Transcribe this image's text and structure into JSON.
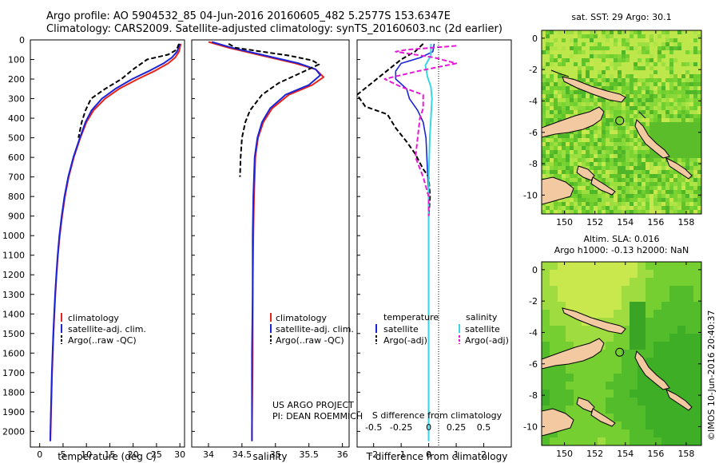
{
  "header": {
    "line1": "Argo profile: AO 5904532_85 04-Jun-2016 20160605_482 5.2577S 153.6347E",
    "line2": "Climatology: CARS2009. Satellite-adjusted climatology: synTS_20160603.nc (2d earlier)"
  },
  "depth_ticks": [
    "0",
    "100",
    "200",
    "300",
    "400",
    "500",
    "600",
    "700",
    "800",
    "900",
    "1000",
    "1100",
    "1200",
    "1300",
    "1400",
    "1500",
    "1600",
    "1700",
    "1800",
    "1900",
    "2000"
  ],
  "colors": {
    "climatology": "#e8241a",
    "satellite": "#1b24d8",
    "argo": "#000000",
    "salinity_sat": "#3ad6e6",
    "salinity_argo": "#e619d6",
    "land": "#f2c9a0",
    "marker": "#000000"
  },
  "chart_data": [
    {
      "type": "line",
      "xlabel": "temperature (deg C)",
      "xticks": [
        "0",
        "5",
        "10",
        "15",
        "20",
        "25",
        "30"
      ],
      "xlim": [
        -2,
        31
      ],
      "ylim": [
        0,
        2080
      ],
      "legend": {
        "placement": "lower-left",
        "entries": [
          "climatology",
          "satellite-adj. clim.",
          "Argo(..raw -QC)"
        ]
      },
      "series": [
        {
          "name": "climatology",
          "points": [
            [
              30.2,
              20
            ],
            [
              29.8,
              60
            ],
            [
              29.0,
              90
            ],
            [
              27.5,
              120
            ],
            [
              24.5,
              160
            ],
            [
              21.0,
              200
            ],
            [
              17.0,
              250
            ],
            [
              14.0,
              300
            ],
            [
              11.5,
              360
            ],
            [
              10.0,
              420
            ],
            [
              8.7,
              500
            ],
            [
              7.3,
              600
            ],
            [
              6.2,
              700
            ],
            [
              5.4,
              800
            ],
            [
              4.8,
              900
            ],
            [
              4.3,
              1000
            ],
            [
              3.9,
              1100
            ],
            [
              3.6,
              1200
            ],
            [
              3.35,
              1300
            ],
            [
              3.15,
              1400
            ],
            [
              2.95,
              1500
            ],
            [
              2.8,
              1600
            ],
            [
              2.65,
              1700
            ],
            [
              2.55,
              1800
            ],
            [
              2.45,
              1900
            ],
            [
              2.35,
              2000
            ],
            [
              2.3,
              2050
            ]
          ]
        },
        {
          "name": "satellite-adj. clim.",
          "points": [
            [
              30.0,
              20
            ],
            [
              29.4,
              60
            ],
            [
              28.3,
              90
            ],
            [
              26.5,
              120
            ],
            [
              23.3,
              160
            ],
            [
              19.8,
              200
            ],
            [
              16.2,
              250
            ],
            [
              13.3,
              300
            ],
            [
              11.1,
              360
            ],
            [
              9.8,
              420
            ],
            [
              8.6,
              500
            ],
            [
              7.2,
              600
            ],
            [
              6.1,
              700
            ],
            [
              5.3,
              800
            ],
            [
              4.7,
              900
            ],
            [
              4.2,
              1000
            ],
            [
              3.85,
              1100
            ],
            [
              3.55,
              1200
            ],
            [
              3.3,
              1300
            ],
            [
              3.1,
              1400
            ],
            [
              2.9,
              1500
            ],
            [
              2.75,
              1600
            ],
            [
              2.6,
              1700
            ],
            [
              2.5,
              1800
            ],
            [
              2.4,
              1900
            ],
            [
              2.3,
              2000
            ],
            [
              2.25,
              2050
            ]
          ]
        },
        {
          "name": "Argo(..raw -QC)",
          "points": [
            [
              29.8,
              20
            ],
            [
              29.3,
              50
            ],
            [
              27.5,
              75
            ],
            [
              23.0,
              100
            ],
            [
              20.0,
              150
            ],
            [
              17.5,
              200
            ],
            [
              14.0,
              250
            ],
            [
              11.0,
              300
            ],
            [
              9.8,
              360
            ],
            [
              9.0,
              420
            ],
            [
              8.3,
              500
            ]
          ]
        }
      ]
    },
    {
      "type": "line",
      "xlabel": "salinity",
      "xticks": [
        "34",
        "34.5",
        "35",
        "35.5",
        "36"
      ],
      "xlim": [
        33.75,
        36.1
      ],
      "ylim": [
        0,
        2080
      ],
      "legend": {
        "placement": "lower-right",
        "entries": [
          "climatology",
          "satellite-adj. clim.",
          "Argo(..raw -QC)"
        ]
      },
      "annotation": [
        "US ARGO PROJECT",
        "PI: DEAN ROEMMICH"
      ],
      "series": [
        {
          "name": "climatology",
          "points": [
            [
              34.0,
              10
            ],
            [
              34.3,
              40
            ],
            [
              34.8,
              80
            ],
            [
              35.3,
              120
            ],
            [
              35.6,
              150
            ],
            [
              35.72,
              190
            ],
            [
              35.55,
              230
            ],
            [
              35.2,
              280
            ],
            [
              34.95,
              350
            ],
            [
              34.82,
              420
            ],
            [
              34.74,
              500
            ],
            [
              34.7,
              600
            ],
            [
              34.68,
              800
            ],
            [
              34.67,
              1000
            ],
            [
              34.66,
              1300
            ],
            [
              34.66,
              1600
            ],
            [
              34.65,
              2000
            ],
            [
              34.65,
              2050
            ]
          ]
        },
        {
          "name": "satellite-adj. clim.",
          "points": [
            [
              34.05,
              10
            ],
            [
              34.35,
              40
            ],
            [
              34.85,
              80
            ],
            [
              35.35,
              120
            ],
            [
              35.6,
              150
            ],
            [
              35.67,
              180
            ],
            [
              35.5,
              230
            ],
            [
              35.15,
              280
            ],
            [
              34.92,
              350
            ],
            [
              34.8,
              420
            ],
            [
              34.73,
              500
            ],
            [
              34.69,
              600
            ],
            [
              34.67,
              800
            ],
            [
              34.66,
              1000
            ],
            [
              34.66,
              1300
            ],
            [
              34.65,
              1600
            ],
            [
              34.65,
              2000
            ],
            [
              34.65,
              2050
            ]
          ]
        },
        {
          "name": "Argo(..raw -QC)",
          "points": [
            [
              34.3,
              20
            ],
            [
              34.4,
              40
            ],
            [
              34.8,
              60
            ],
            [
              35.2,
              80
            ],
            [
              35.55,
              105
            ],
            [
              35.65,
              125
            ],
            [
              35.4,
              165
            ],
            [
              35.05,
              220
            ],
            [
              34.8,
              280
            ],
            [
              34.62,
              360
            ],
            [
              34.55,
              420
            ],
            [
              34.5,
              500
            ],
            [
              34.48,
              600
            ],
            [
              34.47,
              700
            ]
          ]
        }
      ]
    },
    {
      "type": "line",
      "title": "S difference from climatology",
      "xlabel": "T difference from climatology",
      "xticks": [
        "-2",
        "-1",
        "0",
        "1",
        "2"
      ],
      "xticks_top": [
        "-0.5",
        "-0.25",
        "0",
        "0.25",
        "0.5"
      ],
      "xlim": [
        -2.6,
        3.0
      ],
      "ylim": [
        0,
        2080
      ],
      "legend": {
        "placement": "lower-center",
        "headers": [
          "temperature",
          "salinity"
        ],
        "entries": [
          "satellite",
          "Argo(-adj)",
          "satellite",
          "Argo(-adj)"
        ]
      },
      "series": [
        {
          "name": "temperature satellite",
          "points": [
            [
              0.2,
              20
            ],
            [
              0.15,
              60
            ],
            [
              -0.3,
              90
            ],
            [
              -1.0,
              120
            ],
            [
              -1.2,
              160
            ],
            [
              -1.2,
              200
            ],
            [
              -0.8,
              250
            ],
            [
              -0.7,
              300
            ],
            [
              -0.4,
              360
            ],
            [
              -0.2,
              420
            ],
            [
              -0.1,
              500
            ],
            [
              0.0,
              800
            ],
            [
              0.0,
              1500
            ],
            [
              0.0,
              2050
            ]
          ]
        },
        {
          "name": "temperature Argo(-adj)",
          "points": [
            [
              -0.2,
              20
            ],
            [
              -0.5,
              60
            ],
            [
              -1.0,
              100
            ],
            [
              -2.6,
              280
            ],
            [
              -2.3,
              340
            ],
            [
              -1.5,
              380
            ],
            [
              -1.2,
              450
            ],
            [
              -0.8,
              520
            ],
            [
              -0.5,
              580
            ],
            [
              -0.2,
              660
            ],
            [
              0.0,
              700
            ],
            [
              0.05,
              800
            ],
            [
              0.0,
              900
            ]
          ]
        },
        {
          "name": "salinity satellite",
          "points": [
            [
              0.02,
              20
            ],
            [
              0.02,
              80
            ],
            [
              -0.03,
              130
            ],
            [
              -0.01,
              190
            ],
            [
              0.02,
              240
            ],
            [
              0.03,
              300
            ],
            [
              0.02,
              400
            ],
            [
              0.01,
              500
            ],
            [
              0.0,
              700
            ],
            [
              0.0,
              1000
            ],
            [
              0.0,
              1400
            ],
            [
              0.0,
              2050
            ]
          ]
        },
        {
          "name": "salinity Argo(-adj)",
          "points": [
            [
              0.25,
              30
            ],
            [
              -0.2,
              50
            ],
            [
              -0.3,
              60
            ],
            [
              0.05,
              90
            ],
            [
              0.25,
              120
            ],
            [
              -0.1,
              160
            ],
            [
              -0.4,
              200
            ],
            [
              -0.25,
              240
            ],
            [
              -0.05,
              280
            ],
            [
              -0.05,
              350
            ],
            [
              -0.08,
              400
            ],
            [
              -0.1,
              500
            ],
            [
              -0.12,
              600
            ],
            [
              -0.05,
              700
            ],
            [
              0.0,
              800
            ],
            [
              0.0,
              900
            ]
          ]
        }
      ]
    },
    {
      "type": "heatmap",
      "title": "sat. SST: 29 Argo: 30.1",
      "xticks": [
        "150",
        "152",
        "154",
        "156",
        "158"
      ],
      "yticks": [
        "0",
        "-2",
        "-4",
        "-6",
        "-8",
        "-10"
      ],
      "xlim": [
        148.5,
        159.0
      ],
      "ylim": [
        -11.2,
        0.5
      ],
      "argo_position": [
        153.63,
        -5.26
      ]
    },
    {
      "type": "heatmap",
      "title": "Altim. SLA: 0.016",
      "subtitle": "Argo h1000: -0.13 h2000: NaN",
      "xticks": [
        "150",
        "152",
        "154",
        "156",
        "158"
      ],
      "yticks": [
        "0",
        "-2",
        "-4",
        "-6",
        "-8",
        "-10"
      ],
      "xlim": [
        148.5,
        159.0
      ],
      "ylim": [
        -11.2,
        0.5
      ],
      "argo_position": [
        153.63,
        -5.26
      ]
    }
  ],
  "footer": {
    "credit": "©IMOS 10-Jun-2016 20:40:37"
  }
}
